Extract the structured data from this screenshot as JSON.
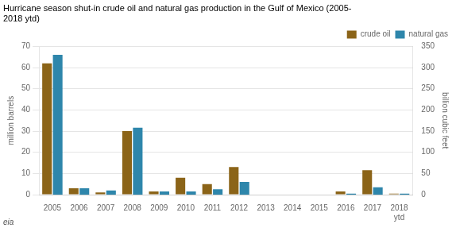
{
  "chart_data": {
    "type": "bar",
    "title": "Hurricane season shut-in crude oil and natural gas production in the Gulf of Mexico (2005-\n2018 ytd)",
    "categories": [
      "2005",
      "2006",
      "2007",
      "2008",
      "2009",
      "2010",
      "2011",
      "2012",
      "2013",
      "2014",
      "2015",
      "2016",
      "2017",
      "2018\nytd"
    ],
    "series": [
      {
        "name": "crude oil",
        "color": "#8B6418",
        "values": [
          62,
          3,
          1,
          30,
          1.5,
          8,
          5,
          13,
          0,
          0,
          0,
          1.5,
          11.5,
          0.5
        ]
      },
      {
        "name": "natural gas",
        "color": "#2E86AB",
        "axis": "y2",
        "values": [
          330,
          15,
          10,
          158,
          7.5,
          7.5,
          12.5,
          30,
          0,
          0,
          0,
          2.5,
          17.5,
          2.5
        ]
      }
    ],
    "ylabel": "million barrels",
    "y2label": "billion cubic feet",
    "ylim": [
      0,
      70
    ],
    "yticks": [
      0,
      10,
      20,
      30,
      40,
      50,
      60,
      70
    ],
    "y2lim": [
      0,
      350
    ],
    "y2ticks": [
      0,
      50,
      100,
      150,
      200,
      250,
      300,
      350
    ],
    "grid": true,
    "legend": "upper right",
    "annotations": [
      "eia"
    ]
  }
}
